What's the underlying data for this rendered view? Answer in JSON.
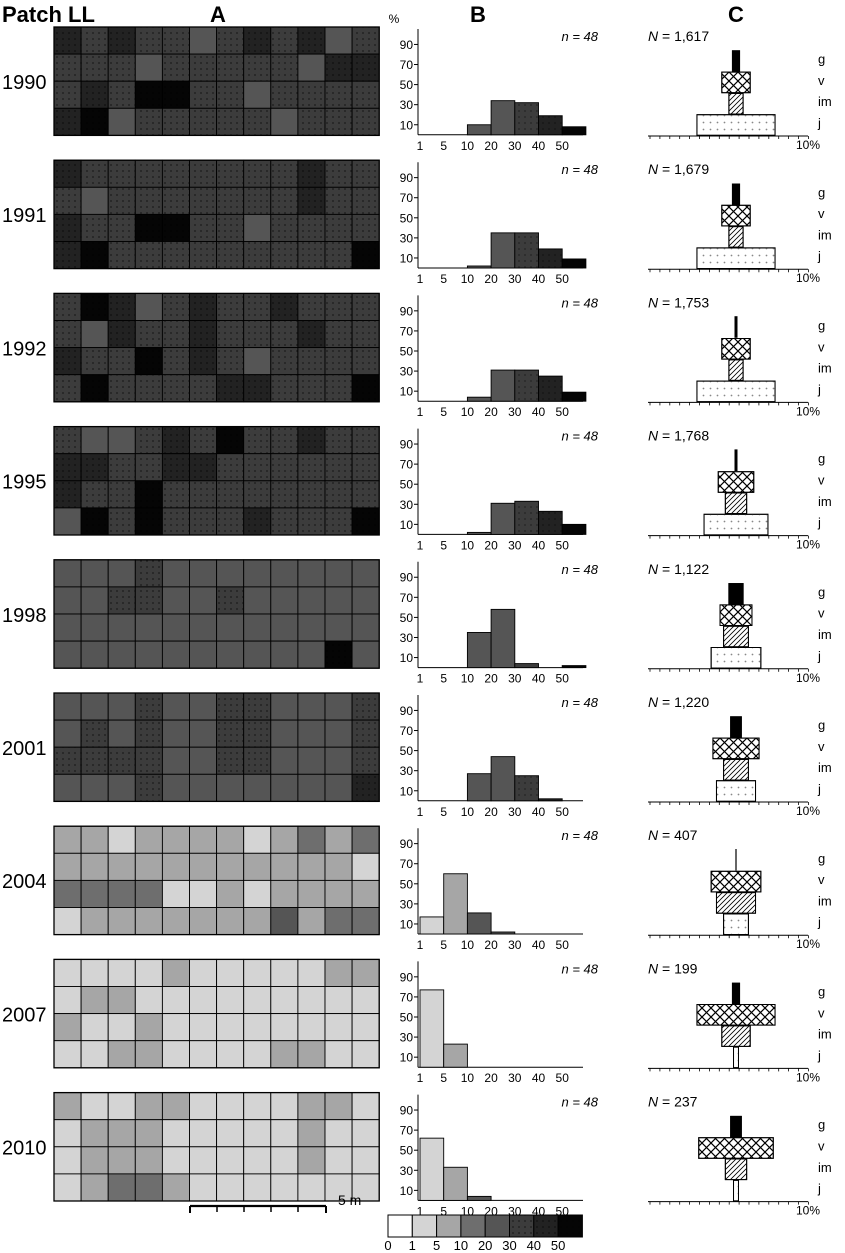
{
  "headers": {
    "patch": "Patch LL",
    "a": "A",
    "b": "B",
    "c": "C"
  },
  "percent_label": "%",
  "scale_bar_label": "5 m",
  "colors": {
    "c0": "#ffffff",
    "c1": "#d4d4d4",
    "c5": "#a6a6a6",
    "c10": "#6e6e6e",
    "c20": "#555555",
    "c30": "#3c3c3c",
    "c40": "#222222",
    "c50": "#050505",
    "grid_stroke": "#000000"
  },
  "legend": {
    "classes": [
      "c0",
      "c1",
      "c5",
      "c10",
      "c20",
      "c30",
      "c40",
      "c50"
    ],
    "labels": [
      "0",
      "1",
      "5",
      "10",
      "20",
      "30",
      "40",
      "50"
    ]
  },
  "panelB_axis": {
    "y_ticks": [
      "90",
      "70",
      "50",
      "30",
      "10"
    ],
    "x_ticks": [
      "1",
      "5",
      "10",
      "20",
      "30",
      "40",
      "50"
    ]
  },
  "panelC_axis": {
    "x_label": "10%",
    "stage_labels": [
      "g",
      "v",
      "im",
      "j"
    ]
  },
  "chart_data": [
    {
      "type": "heatmap",
      "title": "A",
      "description_rows": 4,
      "description_cols": 12,
      "years": [
        "1990",
        "1991",
        "1992",
        "1995",
        "1998",
        "2001",
        "2004",
        "2007",
        "2010"
      ],
      "grids": [
        [
          [
            "c40",
            "c30",
            "c40",
            "c30",
            "c30",
            "c20",
            "c30",
            "c40",
            "c30",
            "c40",
            "c20",
            "c30"
          ],
          [
            "c30",
            "c30",
            "c30",
            "c20",
            "c30",
            "c30",
            "c30",
            "c30",
            "c30",
            "c20",
            "c40",
            "c40"
          ],
          [
            "c30",
            "c40",
            "c30",
            "c50",
            "c50",
            "c30",
            "c30",
            "c20",
            "c30",
            "c30",
            "c30",
            "c30"
          ],
          [
            "c40",
            "c50",
            "c20",
            "c30",
            "c30",
            "c30",
            "c30",
            "c30",
            "c20",
            "c30",
            "c30",
            "c30"
          ]
        ],
        [
          [
            "c40",
            "c30",
            "c30",
            "c30",
            "c30",
            "c30",
            "c30",
            "c30",
            "c30",
            "c40",
            "c30",
            "c30"
          ],
          [
            "c30",
            "c20",
            "c30",
            "c30",
            "c30",
            "c30",
            "c30",
            "c30",
            "c30",
            "c40",
            "c30",
            "c30"
          ],
          [
            "c40",
            "c30",
            "c30",
            "c50",
            "c50",
            "c30",
            "c30",
            "c20",
            "c30",
            "c30",
            "c30",
            "c30"
          ],
          [
            "c40",
            "c50",
            "c30",
            "c30",
            "c30",
            "c30",
            "c30",
            "c30",
            "c30",
            "c30",
            "c30",
            "c50"
          ]
        ],
        [
          [
            "c30",
            "c50",
            "c40",
            "c20",
            "c30",
            "c40",
            "c30",
            "c30",
            "c40",
            "c30",
            "c30",
            "c30"
          ],
          [
            "c30",
            "c20",
            "c40",
            "c30",
            "c30",
            "c40",
            "c30",
            "c30",
            "c30",
            "c40",
            "c30",
            "c30"
          ],
          [
            "c40",
            "c30",
            "c30",
            "c50",
            "c30",
            "c40",
            "c30",
            "c20",
            "c30",
            "c30",
            "c30",
            "c30"
          ],
          [
            "c30",
            "c50",
            "c30",
            "c30",
            "c30",
            "c30",
            "c40",
            "c40",
            "c30",
            "c30",
            "c30",
            "c50"
          ]
        ],
        [
          [
            "c30",
            "c20",
            "c20",
            "c30",
            "c40",
            "c30",
            "c50",
            "c30",
            "c30",
            "c40",
            "c30",
            "c30"
          ],
          [
            "c40",
            "c40",
            "c30",
            "c30",
            "c40",
            "c40",
            "c30",
            "c30",
            "c30",
            "c30",
            "c30",
            "c30"
          ],
          [
            "c40",
            "c30",
            "c30",
            "c50",
            "c30",
            "c30",
            "c30",
            "c30",
            "c30",
            "c30",
            "c30",
            "c30"
          ],
          [
            "c20",
            "c50",
            "c30",
            "c50",
            "c30",
            "c30",
            "c30",
            "c40",
            "c30",
            "c30",
            "c30",
            "c50"
          ]
        ],
        [
          [
            "c20",
            "c20",
            "c20",
            "c30",
            "c20",
            "c20",
            "c20",
            "c20",
            "c20",
            "c20",
            "c20",
            "c20"
          ],
          [
            "c20",
            "c20",
            "c30",
            "c30",
            "c20",
            "c20",
            "c30",
            "c20",
            "c20",
            "c20",
            "c20",
            "c20"
          ],
          [
            "c20",
            "c20",
            "c20",
            "c20",
            "c20",
            "c20",
            "c20",
            "c20",
            "c20",
            "c20",
            "c20",
            "c20"
          ],
          [
            "c20",
            "c20",
            "c20",
            "c20",
            "c20",
            "c20",
            "c20",
            "c20",
            "c20",
            "c20",
            "c50",
            "c20"
          ]
        ],
        [
          [
            "c20",
            "c20",
            "c20",
            "c30",
            "c20",
            "c20",
            "c30",
            "c30",
            "c20",
            "c20",
            "c20",
            "c30"
          ],
          [
            "c20",
            "c30",
            "c20",
            "c30",
            "c20",
            "c20",
            "c30",
            "c30",
            "c20",
            "c20",
            "c20",
            "c30"
          ],
          [
            "c30",
            "c30",
            "c30",
            "c30",
            "c20",
            "c20",
            "c30",
            "c30",
            "c20",
            "c20",
            "c20",
            "c30"
          ],
          [
            "c20",
            "c20",
            "c20",
            "c30",
            "c20",
            "c20",
            "c20",
            "c20",
            "c20",
            "c20",
            "c20",
            "c40"
          ]
        ],
        [
          [
            "c5",
            "c5",
            "c1",
            "c5",
            "c5",
            "c5",
            "c5",
            "c1",
            "c5",
            "c10",
            "c5",
            "c10"
          ],
          [
            "c5",
            "c5",
            "c5",
            "c5",
            "c5",
            "c5",
            "c5",
            "c5",
            "c5",
            "c5",
            "c5",
            "c1"
          ],
          [
            "c10",
            "c10",
            "c10",
            "c10",
            "c1",
            "c1",
            "c5",
            "c1",
            "c5",
            "c5",
            "c5",
            "c5"
          ],
          [
            "c1",
            "c5",
            "c5",
            "c5",
            "c5",
            "c5",
            "c5",
            "c5",
            "c20",
            "c5",
            "c10",
            "c10"
          ]
        ],
        [
          [
            "c1",
            "c1",
            "c1",
            "c1",
            "c5",
            "c1",
            "c1",
            "c1",
            "c1",
            "c1",
            "c5",
            "c5"
          ],
          [
            "c1",
            "c5",
            "c5",
            "c1",
            "c1",
            "c1",
            "c1",
            "c1",
            "c1",
            "c1",
            "c1",
            "c1"
          ],
          [
            "c5",
            "c1",
            "c1",
            "c5",
            "c1",
            "c1",
            "c1",
            "c1",
            "c1",
            "c1",
            "c1",
            "c1"
          ],
          [
            "c1",
            "c1",
            "c5",
            "c5",
            "c1",
            "c1",
            "c1",
            "c1",
            "c5",
            "c5",
            "c1",
            "c1"
          ]
        ],
        [
          [
            "c5",
            "c1",
            "c1",
            "c5",
            "c5",
            "c1",
            "c1",
            "c1",
            "c1",
            "c5",
            "c5",
            "c1"
          ],
          [
            "c1",
            "c5",
            "c5",
            "c5",
            "c1",
            "c1",
            "c1",
            "c1",
            "c1",
            "c5",
            "c1",
            "c1"
          ],
          [
            "c1",
            "c5",
            "c5",
            "c5",
            "c1",
            "c1",
            "c1",
            "c1",
            "c1",
            "c5",
            "c1",
            "c1"
          ],
          [
            "c1",
            "c5",
            "c10",
            "c10",
            "c5",
            "c1",
            "c1",
            "c1",
            "c1",
            "c1",
            "c1",
            "c1"
          ]
        ]
      ]
    },
    {
      "type": "bar",
      "title": "B",
      "categories": [
        "1–5",
        "5–10",
        "10–20",
        "20–30",
        "30–40",
        "40–50",
        ">50"
      ],
      "ylabel": "%",
      "ylim": [
        0,
        100
      ],
      "series": [
        {
          "year": "1990",
          "n_label": "n = 48",
          "values": [
            0,
            0,
            10,
            34,
            32,
            19,
            8
          ],
          "fill": "mixed"
        },
        {
          "year": "1991",
          "n_label": "n = 48",
          "values": [
            0,
            0,
            2,
            35,
            35,
            19,
            9
          ],
          "fill": "mixed"
        },
        {
          "year": "1992",
          "n_label": "n = 48",
          "values": [
            0,
            0,
            4,
            31,
            31,
            25,
            9
          ],
          "fill": "mixed"
        },
        {
          "year": "1995",
          "n_label": "n = 48",
          "values": [
            0,
            0,
            2,
            31,
            33,
            23,
            10
          ],
          "fill": "mixed"
        },
        {
          "year": "1998",
          "n_label": "n = 48",
          "values": [
            0,
            0,
            35,
            58,
            4,
            0,
            2
          ],
          "fill": "mixed"
        },
        {
          "year": "2001",
          "n_label": "n = 48",
          "values": [
            0,
            0,
            27,
            44,
            25,
            2,
            0
          ],
          "fill": "mixed"
        },
        {
          "year": "2004",
          "n_label": "n = 48",
          "values": [
            17,
            60,
            21,
            2,
            0,
            0,
            0
          ],
          "fill": "mixed"
        },
        {
          "year": "2007",
          "n_label": "n = 48",
          "values": [
            77,
            23,
            0,
            0,
            0,
            0,
            0
          ],
          "fill": "mixed"
        },
        {
          "year": "2010",
          "n_label": "n = 48",
          "values": [
            62,
            33,
            4,
            0,
            0,
            0,
            0
          ],
          "fill": "mixed"
        }
      ]
    },
    {
      "type": "bar",
      "title": "C",
      "orientation": "centered-horizontal",
      "stages": [
        "g",
        "v",
        "im",
        "j"
      ],
      "x_max_label": "10%",
      "series": [
        {
          "year": "1990",
          "N_value": "1,617",
          "values": {
            "g": 1,
            "v": 4,
            "im": 2,
            "j": 11
          }
        },
        {
          "year": "1991",
          "N_value": "1,679",
          "values": {
            "g": 1,
            "v": 4,
            "im": 2,
            "j": 11
          }
        },
        {
          "year": "1992",
          "N_value": "1,753",
          "values": {
            "g": 0.3,
            "v": 4,
            "im": 2,
            "j": 11
          }
        },
        {
          "year": "1995",
          "N_value": "1,768",
          "values": {
            "g": 0.3,
            "v": 5,
            "im": 3,
            "j": 9
          }
        },
        {
          "year": "1998",
          "N_value": "1,122",
          "values": {
            "g": 2,
            "v": 4.5,
            "im": 3.5,
            "j": 7
          }
        },
        {
          "year": "2001",
          "N_value": "1,220",
          "values": {
            "g": 1.5,
            "v": 6.5,
            "im": 3.5,
            "j": 5.5
          }
        },
        {
          "year": "2004",
          "N_value": "407",
          "values": {
            "g": 0.1,
            "v": 7,
            "im": 5.5,
            "j": 3.5
          }
        },
        {
          "year": "2007",
          "N_value": "199",
          "values": {
            "g": 1,
            "v": 11,
            "im": 4,
            "j": 0.7
          }
        },
        {
          "year": "2010",
          "N_value": "237",
          "values": {
            "g": 1.5,
            "v": 10.5,
            "im": 3,
            "j": 0.7
          }
        }
      ]
    }
  ]
}
